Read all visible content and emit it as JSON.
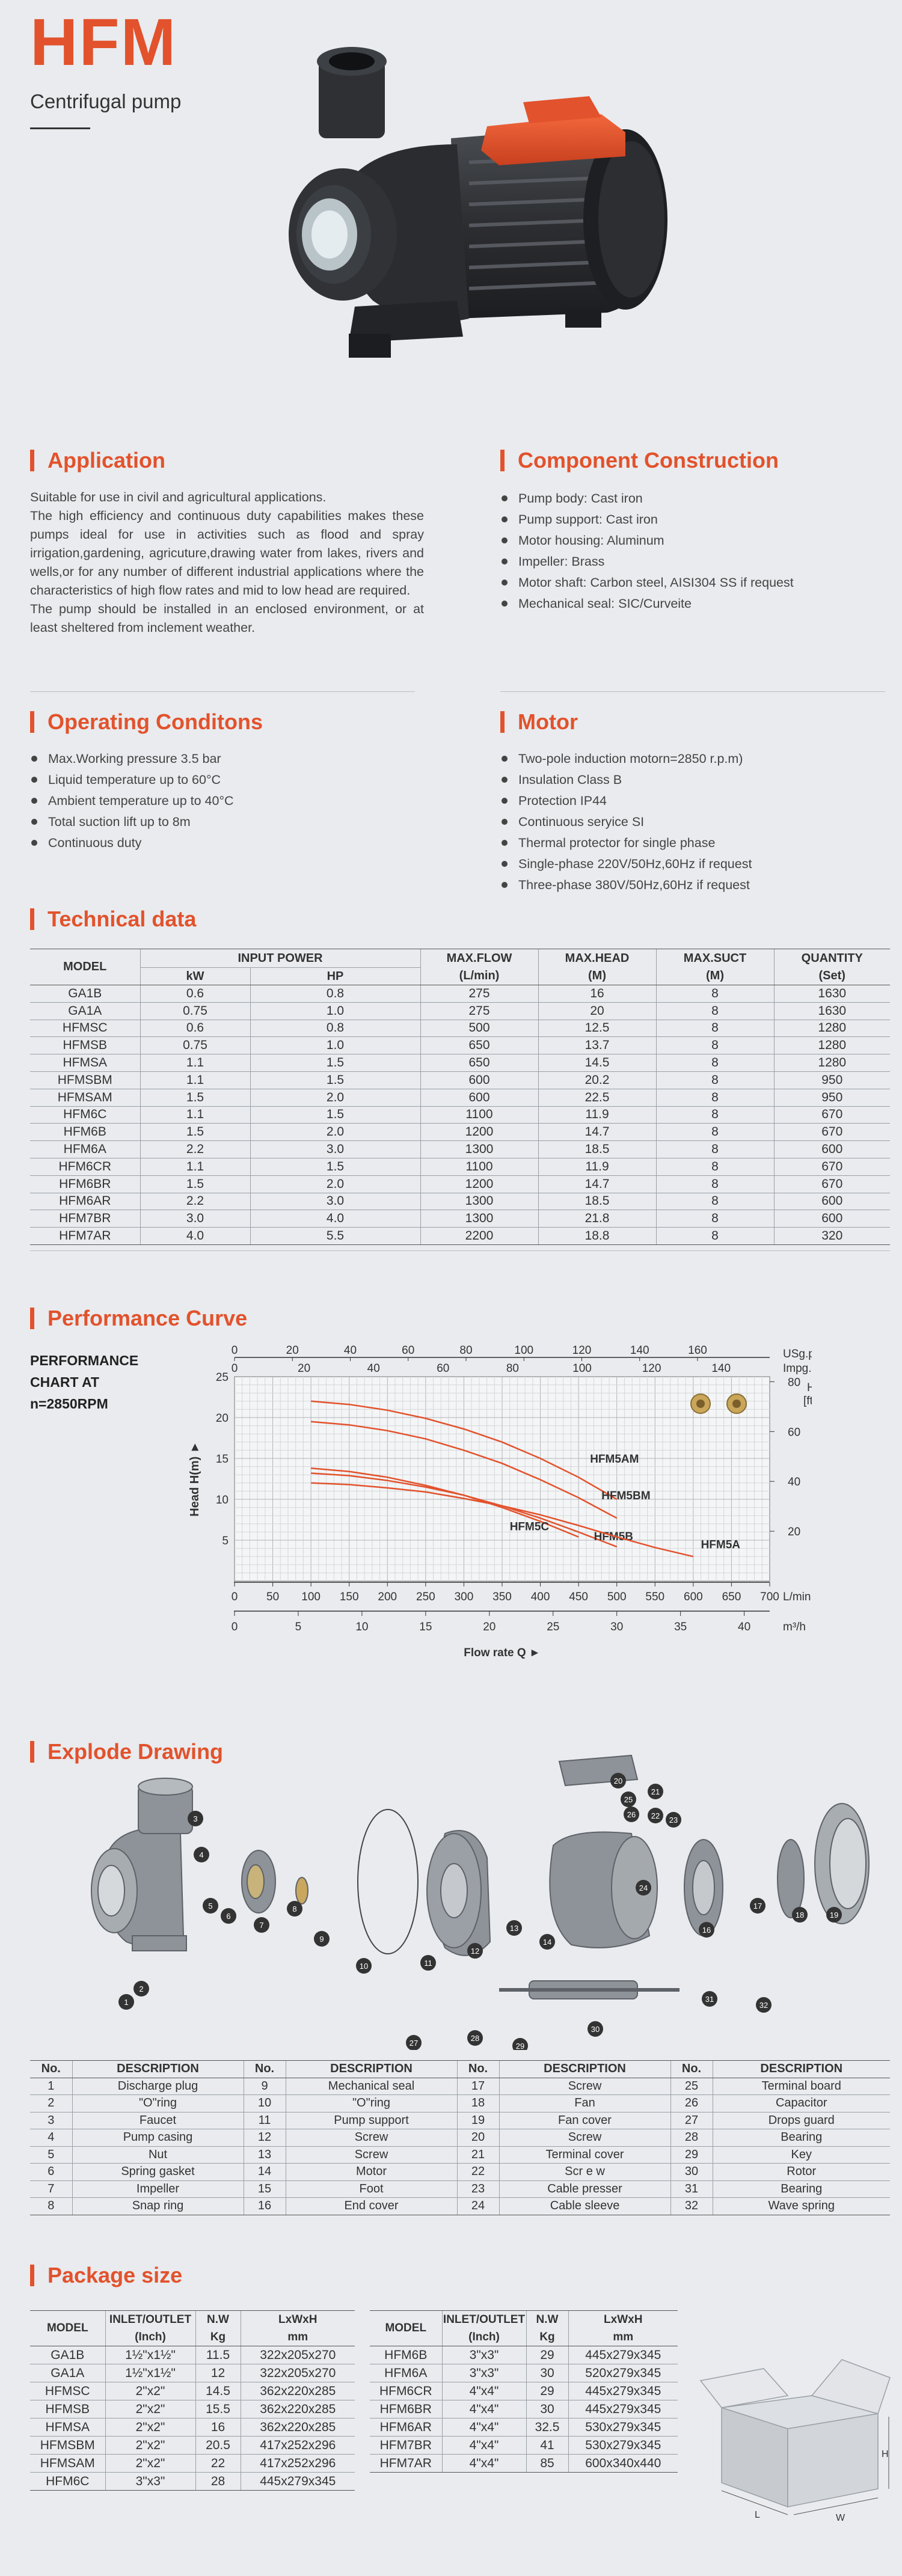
{
  "header": {
    "brand": "HFM",
    "subtitle": "Centrifugal pump"
  },
  "application": {
    "title": "Application",
    "paragraphs": [
      "Suitable for use in civil and agricultural applications.",
      "The high efficiency and continuous duty capabilities makes these pumps ideal for use in activities such as flood and spray irrigation,gardening, agricuture,drawing water from lakes, rivers and wells,or for any number of different industrial applications where the characteristics of high flow rates and mid to low head are required.",
      "The pump should be installed in an enclosed environment, or at least sheltered from inclement weather."
    ]
  },
  "component": {
    "title": "Component Construction",
    "items": [
      "Pump body: Cast iron",
      "Pump support: Cast iron",
      "Motor housing: Aluminum",
      "Impeller:  Brass",
      "Motor shaft: Carbon steel, AISI304 SS if request",
      "Mechanical seal: SIC/Curveite"
    ]
  },
  "operating": {
    "title": "Operating Conditons",
    "items": [
      "Max.Working pressure 3.5 bar",
      "Liquid temperature up to 60°C",
      "Ambient temperature up to 40°C",
      "Total suction lift up to 8m",
      "Continuous duty"
    ]
  },
  "motor": {
    "title": "Motor",
    "items": [
      "Two-pole induction motorn=2850 r.p.m)",
      "Insulation Class B",
      "Protection IP44",
      "Continuous seryice SI",
      "Thermal protector for single phase",
      "Single-phase 220V/50Hz,60Hz if request",
      "Three-phase 380V/50Hz,60Hz if request"
    ]
  },
  "technical": {
    "title": "Technical data",
    "headers": {
      "model": "MODEL",
      "input_power": "INPUT POWER",
      "kw": "kW",
      "hp": "HP",
      "max_flow": "MAX.FLOW",
      "flow_unit": "(L/min)",
      "max_head": "MAX.HEAD",
      "head_unit": "(M)",
      "max_suct": "MAX.SUCT",
      "suct_unit": "(M)",
      "quantity": "QUANTITY",
      "qty_unit": "(Set)"
    },
    "rows": [
      [
        "GA1B",
        "0.6",
        "0.8",
        "275",
        "16",
        "8",
        "1630"
      ],
      [
        "GA1A",
        "0.75",
        "1.0",
        "275",
        "20",
        "8",
        "1630"
      ],
      [
        "HFMSC",
        "0.6",
        "0.8",
        "500",
        "12.5",
        "8",
        "1280"
      ],
      [
        "HFMSB",
        "0.75",
        "1.0",
        "650",
        "13.7",
        "8",
        "1280"
      ],
      [
        "HFMSA",
        "1.1",
        "1.5",
        "650",
        "14.5",
        "8",
        "1280"
      ],
      [
        "HFMSBM",
        "1.1",
        "1.5",
        "600",
        "20.2",
        "8",
        "950"
      ],
      [
        "HFMSAM",
        "1.5",
        "2.0",
        "600",
        "22.5",
        "8",
        "950"
      ],
      [
        "HFM6C",
        "1.1",
        "1.5",
        "1100",
        "11.9",
        "8",
        "670"
      ],
      [
        "HFM6B",
        "1.5",
        "2.0",
        "1200",
        "14.7",
        "8",
        "670"
      ],
      [
        "HFM6A",
        "2.2",
        "3.0",
        "1300",
        "18.5",
        "8",
        "600"
      ],
      [
        "HFM6CR",
        "1.1",
        "1.5",
        "1100",
        "11.9",
        "8",
        "670"
      ],
      [
        "HFM6BR",
        "1.5",
        "2.0",
        "1200",
        "14.7",
        "8",
        "670"
      ],
      [
        "HFM6AR",
        "2.2",
        "3.0",
        "1300",
        "18.5",
        "8",
        "600"
      ],
      [
        "HFM7BR",
        "3.0",
        "4.0",
        "1300",
        "21.8",
        "8",
        "600"
      ],
      [
        "HFM7AR",
        "4.0",
        "5.5",
        "2200",
        "18.8",
        "8",
        "320"
      ]
    ]
  },
  "performance": {
    "title": "Performance Curve",
    "label_lines": [
      "PERFORMANCE",
      "CHART AT",
      "n=2850RPM"
    ]
  },
  "chart_data": {
    "type": "line",
    "title": "",
    "xlabel": "Flow rate Q",
    "ylabel": "Head H(m)",
    "x_unit": "L/min",
    "xlim": [
      0,
      700
    ],
    "ylim": [
      0,
      25
    ],
    "x_ticks": [
      0,
      50,
      100,
      150,
      200,
      250,
      300,
      350,
      400,
      450,
      500,
      550,
      600,
      650,
      700
    ],
    "y_ticks": [
      5,
      10,
      15,
      20,
      25
    ],
    "x2_unit": "m³/h",
    "x2_ticks": [
      0,
      5,
      10,
      15,
      20,
      25,
      30,
      35,
      40
    ],
    "top1_unit": "USg.p.m",
    "top1_ticks": [
      0,
      20,
      40,
      60,
      80,
      100,
      120,
      140,
      160
    ],
    "top2_unit": "Impg.p.m",
    "top2_ticks": [
      0,
      20,
      40,
      60,
      80,
      100,
      120,
      140
    ],
    "right_unit": "H [ft]",
    "right_ticks": [
      20,
      40,
      60,
      80
    ],
    "grid": true,
    "series": [
      {
        "name": "HFM5AM",
        "x": [
          100,
          150,
          200,
          250,
          300,
          350,
          400,
          450,
          500
        ],
        "y": [
          22,
          21.6,
          20.9,
          19.9,
          18.6,
          17,
          15,
          12.7,
          10
        ]
      },
      {
        "name": "HFM5BM",
        "x": [
          100,
          150,
          200,
          250,
          300,
          350,
          400,
          450,
          500
        ],
        "y": [
          19.5,
          19.1,
          18.4,
          17.4,
          16,
          14.4,
          12.4,
          10.2,
          7.7
        ]
      },
      {
        "name": "HFM5C",
        "x": [
          100,
          150,
          200,
          250,
          300,
          350,
          400,
          450
        ],
        "y": [
          13.8,
          13.4,
          12.7,
          11.7,
          10.5,
          9,
          7.3,
          5.4
        ]
      },
      {
        "name": "HFM5B",
        "x": [
          100,
          150,
          200,
          250,
          300,
          350,
          400,
          450,
          500
        ],
        "y": [
          13.2,
          12.9,
          12.3,
          11.5,
          10.5,
          9.2,
          7.7,
          6,
          4.2
        ]
      },
      {
        "name": "HFM5A",
        "x": [
          100,
          150,
          200,
          250,
          300,
          350,
          400,
          450,
          500,
          550,
          600
        ],
        "y": [
          12,
          11.8,
          11.4,
          10.9,
          10.1,
          9.2,
          8.1,
          6.8,
          5.4,
          4.1,
          3
        ]
      }
    ]
  },
  "explode": {
    "title": "Explode Drawing",
    "table_headers": [
      "No.",
      "DESCRIPTION"
    ],
    "parts": [
      [
        "1",
        "Discharge  plug",
        "9",
        "Mechanical seal",
        "17",
        "Screw",
        "25",
        "Terminal board"
      ],
      [
        "2",
        "\"O\"ring",
        "10",
        "\"O\"ring",
        "18",
        "Fan",
        "26",
        "Capacitor"
      ],
      [
        "3",
        "Faucet",
        "11",
        "Pump support",
        "19",
        "Fan cover",
        "27",
        "Drops guard"
      ],
      [
        "4",
        "Pump casing",
        "12",
        "Screw",
        "20",
        "Screw",
        "28",
        "Bearing"
      ],
      [
        "5",
        "Nut",
        "13",
        "Screw",
        "21",
        "Terminal cover",
        "29",
        "Key"
      ],
      [
        "6",
        "Spring gasket",
        "14",
        "Motor",
        "22",
        "Scr e w",
        "30",
        "Rotor"
      ],
      [
        "7",
        "Impeller",
        "15",
        "Foot",
        "23",
        "Cable presser",
        "31",
        "Bearing"
      ],
      [
        "8",
        "Snap ring",
        "16",
        "End cover",
        "24",
        "Cable sleeve",
        "32",
        "Wave spring"
      ]
    ]
  },
  "package": {
    "title": "Package size",
    "headers": {
      "model": "MODEL",
      "inlet": "INLET/OUTLET",
      "inlet_unit": "(Inch)",
      "nw": "N.W",
      "nw_unit": "Kg",
      "lwh": "LxWxH",
      "lwh_unit": "mm"
    },
    "left_rows": [
      [
        "GA1B",
        "1½\"x1½\"",
        "11.5",
        "322x205x270"
      ],
      [
        "GA1A",
        "1½\"x1½\"",
        "12",
        "322x205x270"
      ],
      [
        "HFMSC",
        "2\"x2\"",
        "14.5",
        "362x220x285"
      ],
      [
        "HFMSB",
        "2\"x2\"",
        "15.5",
        "362x220x285"
      ],
      [
        "HFMSA",
        "2\"x2\"",
        "16",
        "362x220x285"
      ],
      [
        "HFMSBM",
        "2\"x2\"",
        "20.5",
        "417x252x296"
      ],
      [
        "HFMSAM",
        "2\"x2\"",
        "22",
        "417x252x296"
      ],
      [
        "HFM6C",
        "3\"x3\"",
        "28",
        "445x279x345"
      ]
    ],
    "right_rows": [
      [
        "HFM6B",
        "3\"x3\"",
        "29",
        "445x279x345"
      ],
      [
        "HFM6A",
        "3\"x3\"",
        "30",
        "520x279x345"
      ],
      [
        "HFM6CR",
        "4\"x4\"",
        "29",
        "445x279x345"
      ],
      [
        "HFM6BR",
        "4\"x4\"",
        "30",
        "445x279x345"
      ],
      [
        "HFM6AR",
        "4\"x4\"",
        "32.5",
        "530x279x345"
      ],
      [
        "HFM7BR",
        "4\"x4\"",
        "41",
        "530x279x345"
      ],
      [
        "HFM7AR",
        "4\"x4\"",
        "85",
        "600x340x440"
      ]
    ],
    "box_labels": {
      "h": "H",
      "l": "L",
      "w": "W"
    }
  },
  "colors": {
    "accent": "#e2522c",
    "background": "#e9ebee",
    "curve": "#e2522c"
  }
}
